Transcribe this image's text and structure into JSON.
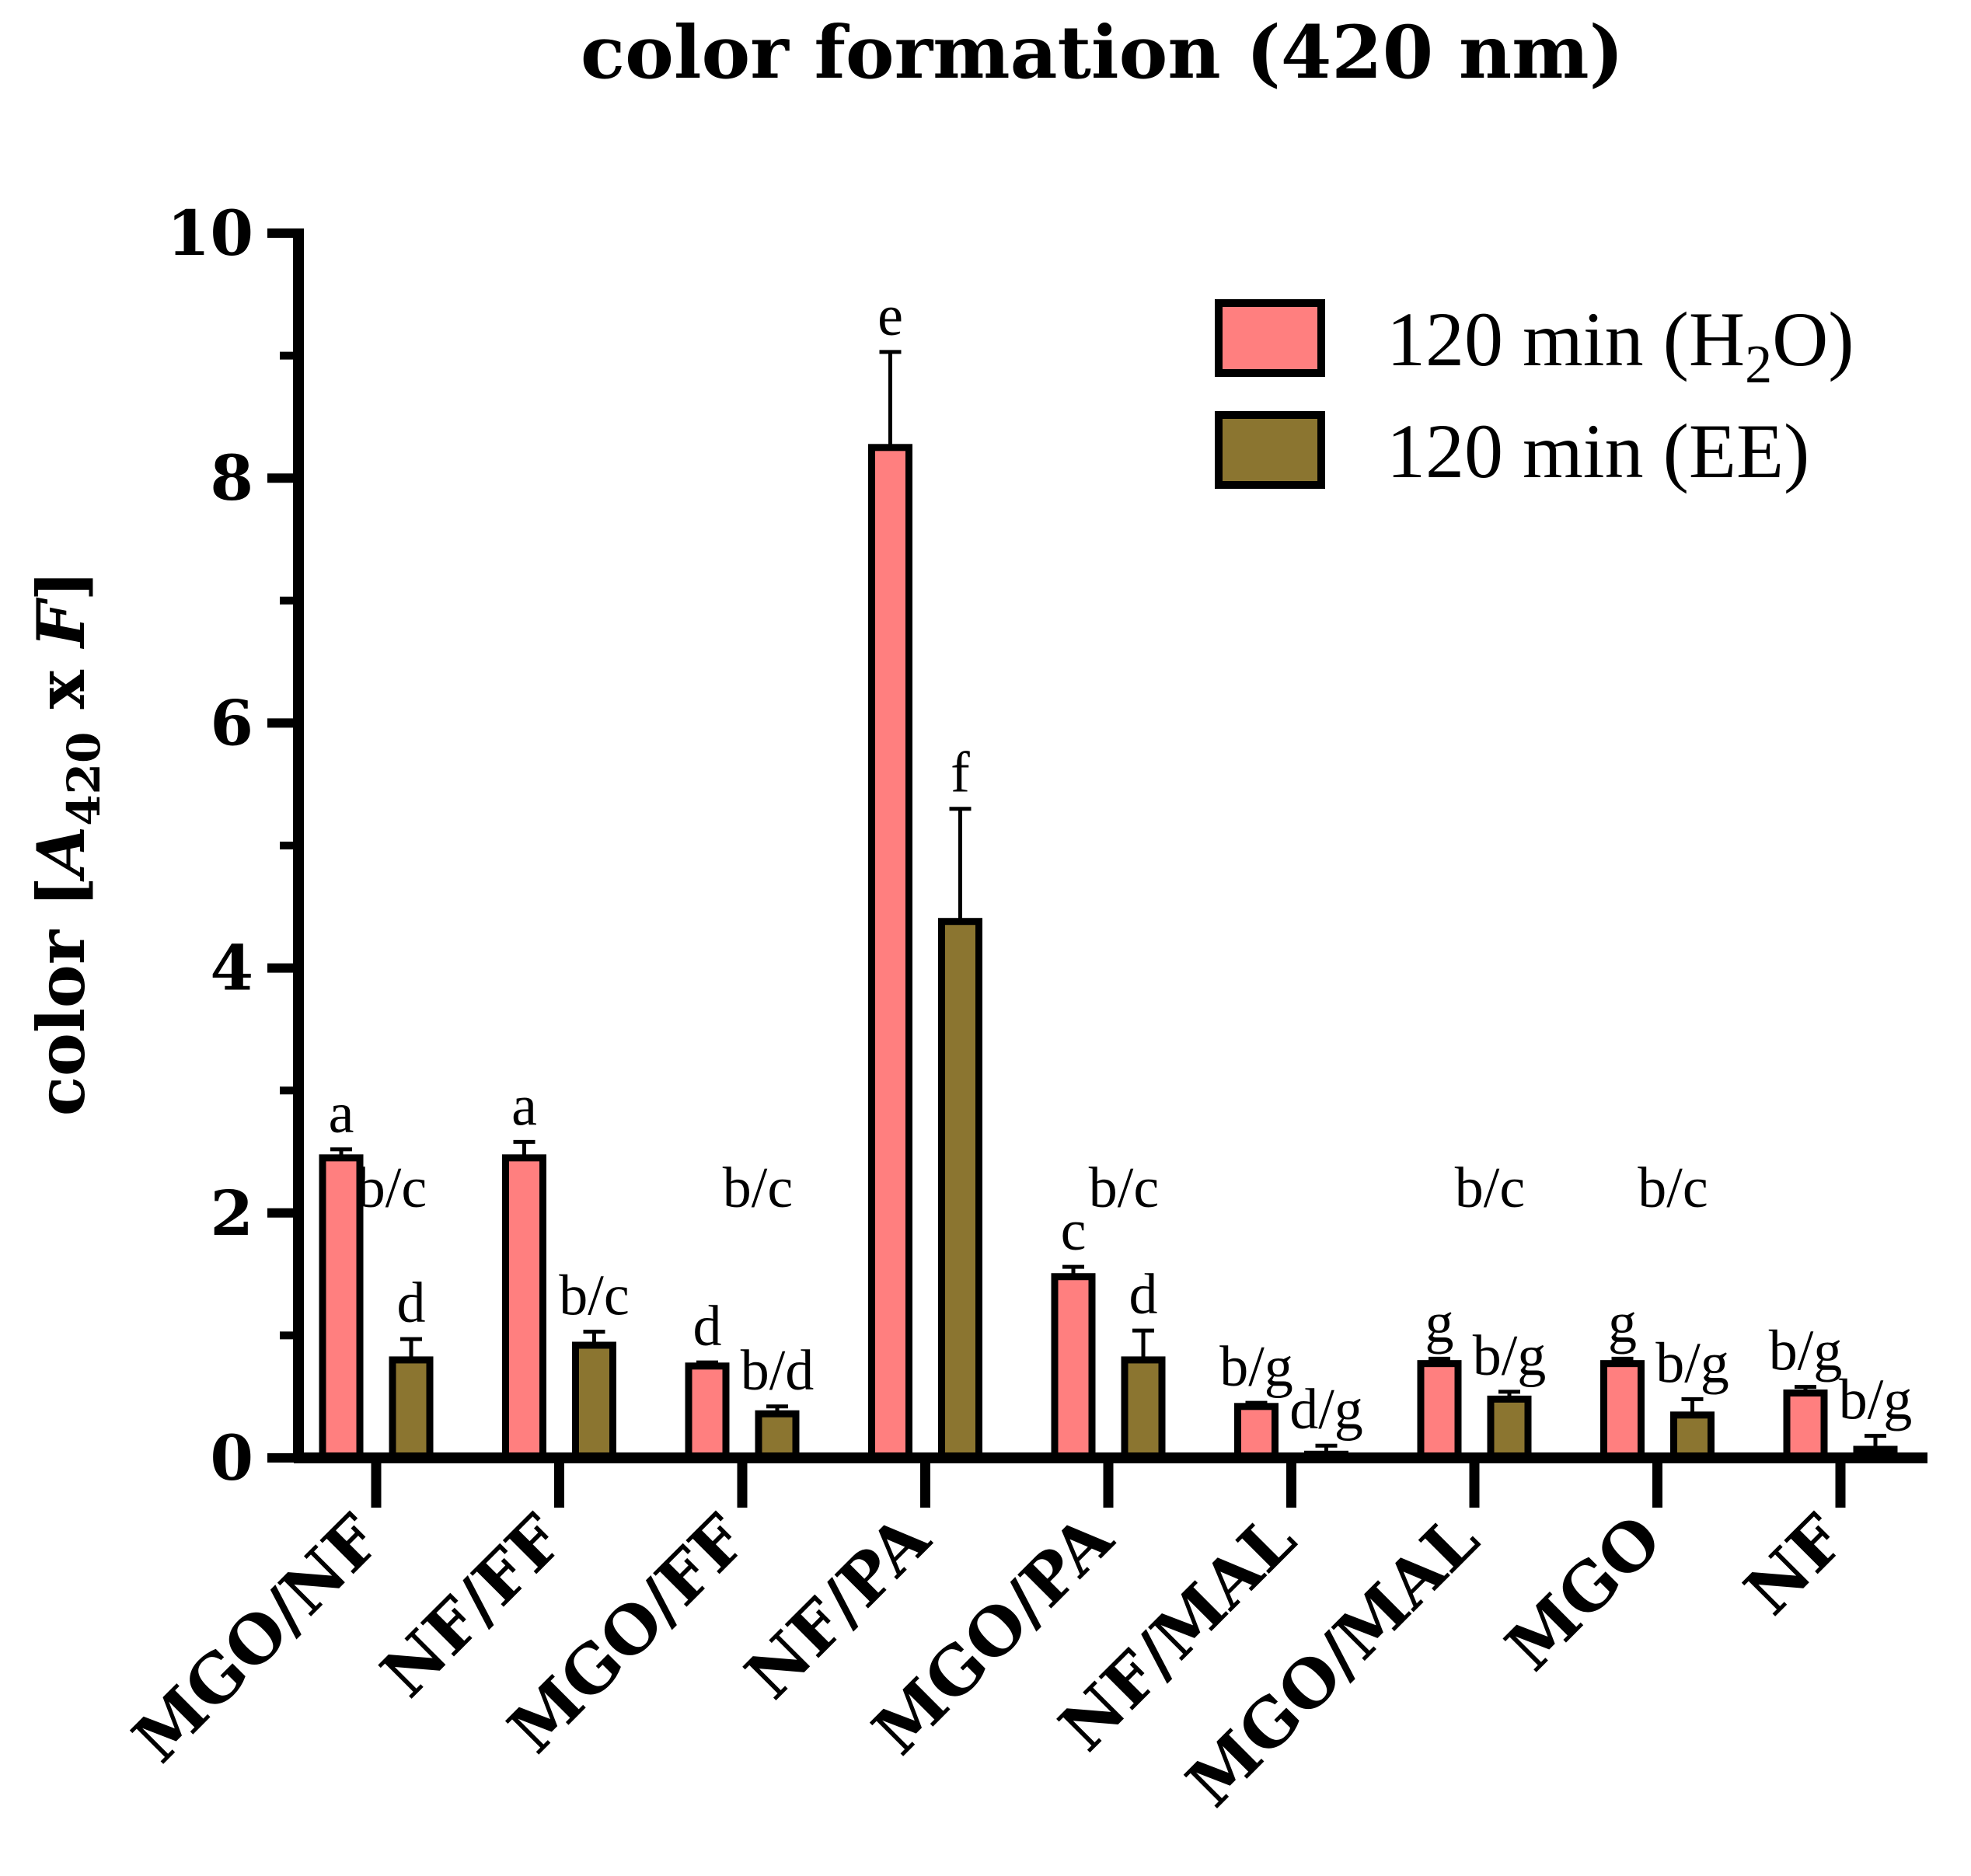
{
  "chart_data": {
    "type": "bar",
    "title": "color formation (420 nm)",
    "ylabel": {
      "prefix": "color [",
      "symbol": "A",
      "subscript": "420",
      "middle": " x ",
      "factor": "F",
      "suffix": "]"
    },
    "xlabel": "",
    "ylim": [
      0,
      10
    ],
    "yticks": [
      0,
      2,
      4,
      6,
      8,
      10
    ],
    "yticks_minor": [
      1,
      3,
      5,
      7,
      9
    ],
    "categories": [
      "MGO/NF",
      "NF/FF",
      "MGO/FF",
      "NF/PA",
      "MGO/PA",
      "NF/MAL",
      "MGO/MAL",
      "MGO",
      "NF"
    ],
    "series": [
      {
        "name": "120 min (H2O)",
        "legend_main": "120 min (H",
        "legend_sub": "2",
        "legend_tail": "O)",
        "color": "#FF7F7F",
        "values": [
          2.45,
          2.45,
          0.75,
          8.25,
          1.48,
          0.42,
          0.77,
          0.77,
          0.53
        ],
        "errors": [
          0.07,
          0.13,
          0.03,
          0.78,
          0.08,
          0.03,
          0.04,
          0.04,
          0.05
        ],
        "labels": [
          "a",
          "a",
          "d",
          "e",
          "c",
          "b/g",
          "g",
          "g",
          "b/g"
        ]
      },
      {
        "name": "120 min (EE)",
        "legend_main": "120 min (EE)",
        "color": "#8B7530",
        "values": [
          0.8,
          0.92,
          0.36,
          4.38,
          0.8,
          0.03,
          0.48,
          0.35,
          0.07
        ],
        "errors": [
          0.17,
          0.11,
          0.06,
          0.92,
          0.24,
          0.07,
          0.06,
          0.13,
          0.11
        ],
        "labels": [
          "d",
          "b/c",
          "b/d",
          "f",
          "d",
          "d/g",
          "b/g",
          "b/g",
          "b/g"
        ]
      }
    ],
    "group_labels": [
      "b/c",
      "",
      "b/c",
      "",
      "b/c",
      "",
      "b/c",
      "b/c",
      ""
    ],
    "legend_position": "top-right"
  }
}
